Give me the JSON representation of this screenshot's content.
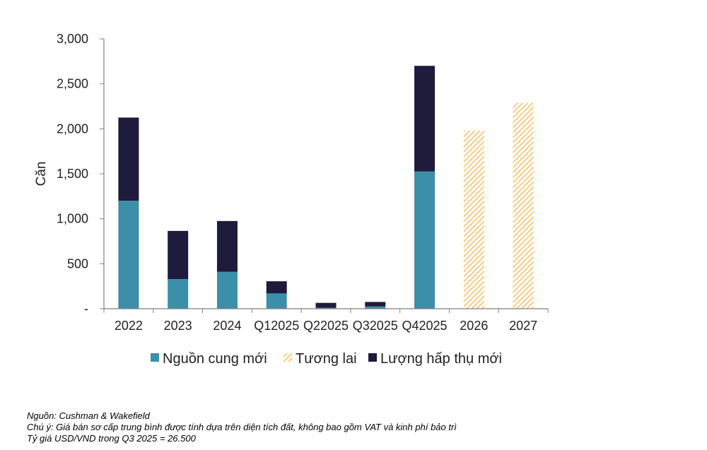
{
  "chart_data": {
    "type": "bar",
    "stacked": true,
    "categories": [
      "2022",
      "2023",
      "2024",
      "Q12025",
      "Q22025",
      "Q32025",
      "Q42025",
      "2026",
      "2027"
    ],
    "series": [
      {
        "name": "Nguồn cung mới",
        "values": [
          1200,
          330,
          410,
          170,
          10,
          25,
          1525,
          null,
          null
        ],
        "color": "#3C8FA8",
        "pattern": "solid"
      },
      {
        "name": "Tương lai",
        "values": [
          null,
          null,
          null,
          null,
          null,
          null,
          null,
          1980,
          2290
        ],
        "color": "#F2C166",
        "pattern": "hatched"
      },
      {
        "name": "Lượng hấp thụ mới",
        "values": [
          925,
          535,
          565,
          135,
          55,
          50,
          1175,
          null,
          null
        ],
        "color": "#1E1B3C",
        "pattern": "solid"
      }
    ],
    "ylabel": "Căn",
    "xlabel": "",
    "ylim": [
      0,
      3000
    ],
    "yticks": [
      0,
      500,
      1000,
      1500,
      2000,
      2500,
      3000
    ],
    "ytick_labels": [
      "-",
      "500",
      "1,000",
      "1,500",
      "2,000",
      "2,500",
      "3,000"
    ],
    "grid": false,
    "legend_position": "bottom"
  },
  "notes": {
    "source": "Nguồn: Cushman & Wakefield",
    "note": "Chú ý: Giá bán sơ cấp trung bình được tính dựa trên diện tích đất, không bao gồm VAT và  kinh phí bảo trì",
    "exchange_rate": "Tỷ giá USD/VND trong Q3 2025 = 26.500"
  }
}
